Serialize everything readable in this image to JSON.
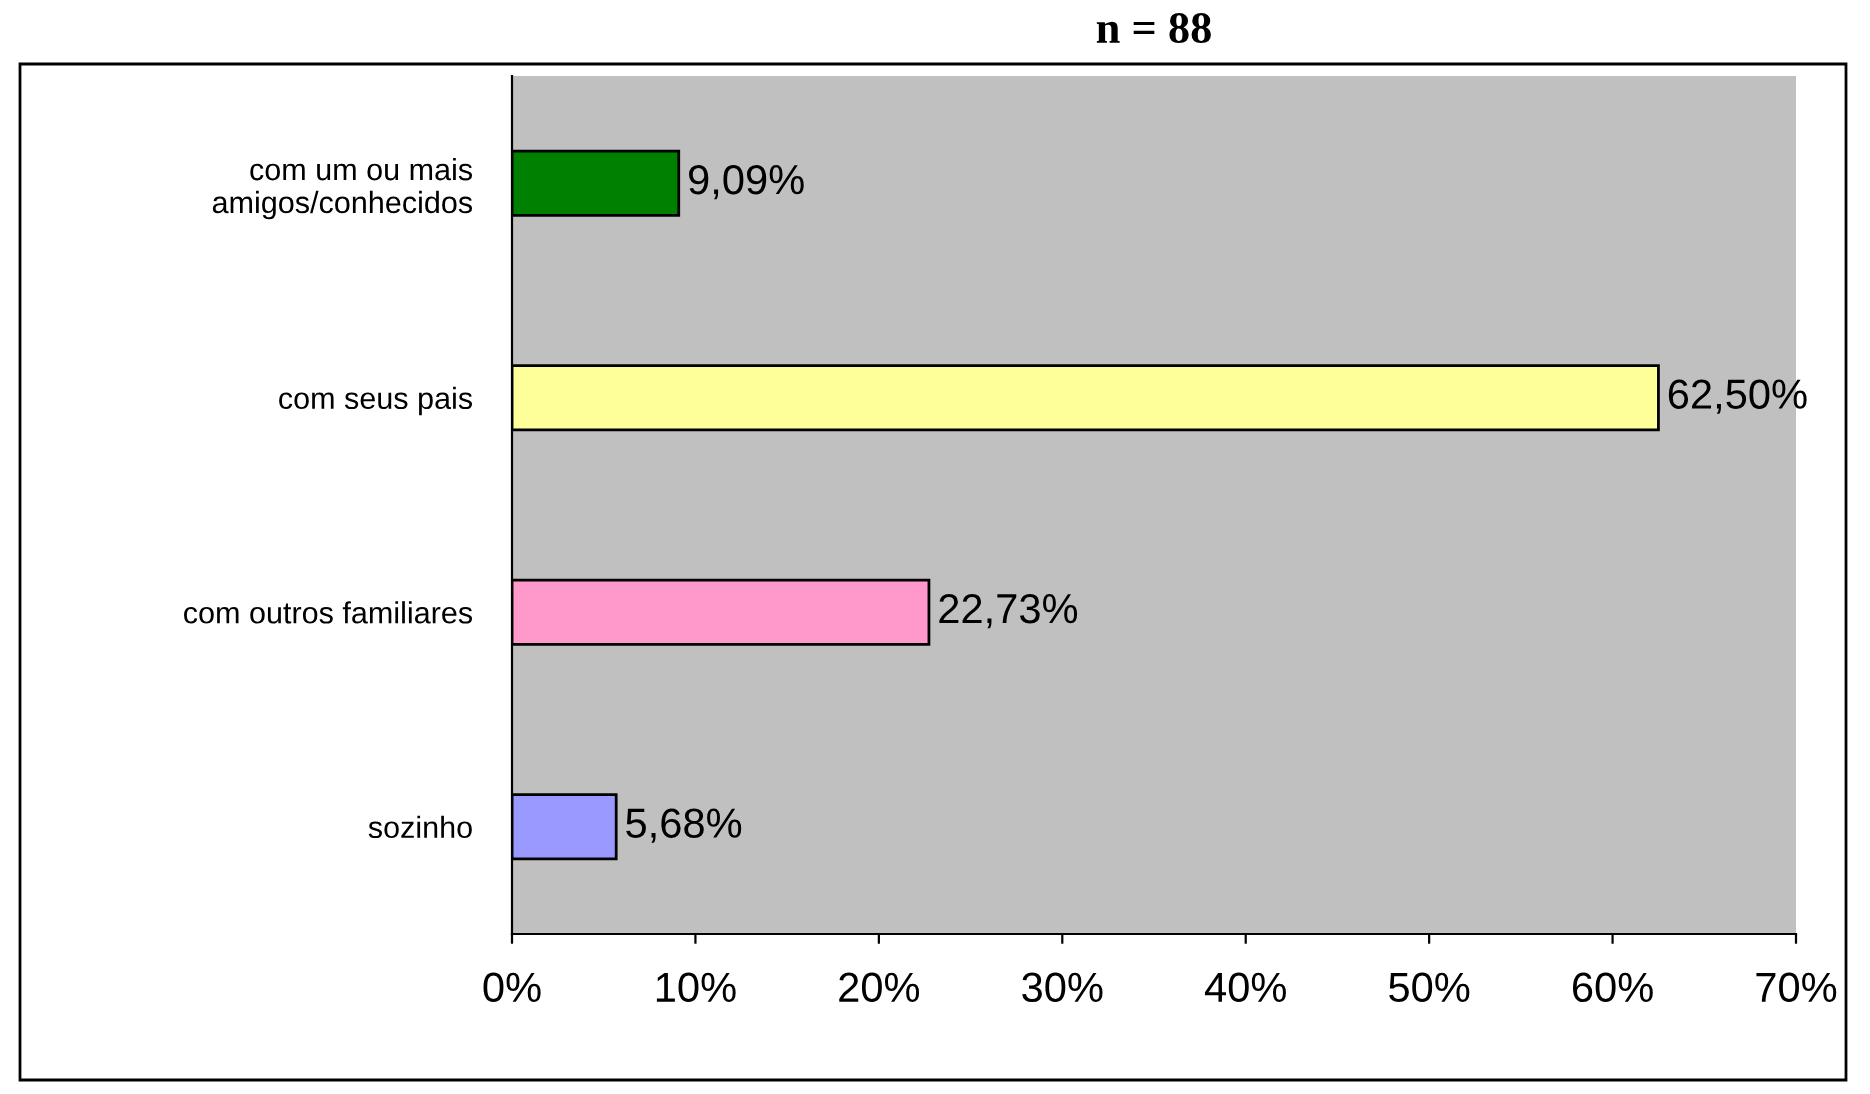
{
  "chart_data": {
    "type": "bar",
    "orientation": "horizontal",
    "title": "n = 88",
    "categories": [
      "com um ou mais\namigos/conhecidos",
      "com seus pais",
      "com outros familiares",
      "sozinho"
    ],
    "values": [
      9.09,
      62.5,
      22.73,
      5.68
    ],
    "colors": [
      "#008000",
      "#ffff99",
      "#ff99cc",
      "#9999ff"
    ],
    "value_labels": [
      "9,09%",
      "62,50%",
      "22,73%",
      "5,68%"
    ],
    "xlim": [
      0,
      70
    ],
    "xticks": [
      {
        "value": 0,
        "label": "0%"
      },
      {
        "value": 10,
        "label": "10%"
      },
      {
        "value": 20,
        "label": "20%"
      },
      {
        "value": 30,
        "label": "30%"
      },
      {
        "value": 40,
        "label": "40%"
      },
      {
        "value": 50,
        "label": "50%"
      },
      {
        "value": 60,
        "label": "60%"
      },
      {
        "value": 70,
        "label": "70%"
      }
    ],
    "grid": false,
    "legend": false
  }
}
